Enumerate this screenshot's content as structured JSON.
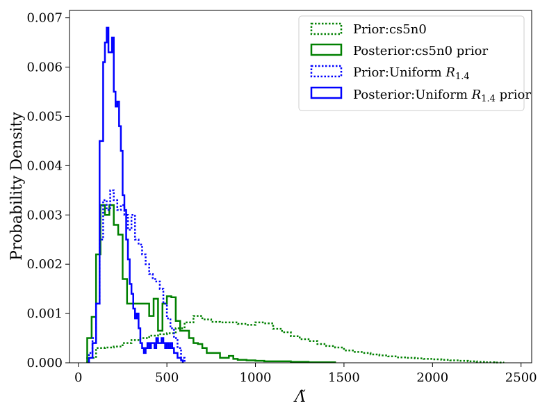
{
  "chart_data": {
    "type": "histogram",
    "xlabel": "Λ̃",
    "ylabel": "Probability Density",
    "xlim": [
      -50,
      2560
    ],
    "ylim": [
      0,
      0.00715
    ],
    "x_ticks": [
      0,
      500,
      1000,
      1500,
      2000,
      2500
    ],
    "x_tick_labels": [
      "0",
      "500",
      "1000",
      "1500",
      "2000",
      "2500"
    ],
    "y_ticks": [
      0,
      0.001,
      0.002,
      0.003,
      0.004,
      0.005,
      0.006,
      0.007
    ],
    "y_tick_labels": [
      "0.000",
      "0.001",
      "0.002",
      "0.003",
      "0.004",
      "0.005",
      "0.006",
      "0.007"
    ],
    "legend_position": "top-right",
    "legend": [
      {
        "label": "Prior:cs5n0",
        "color": "#008000",
        "style": "dotted"
      },
      {
        "label": "Posterior:cs5n0 prior",
        "color": "#008000",
        "style": "solid"
      },
      {
        "label_prefix": "Prior:Uniform ",
        "label_var": "R",
        "label_sub": "1.4",
        "label_suffix": "",
        "color": "#0000ff",
        "style": "dotted"
      },
      {
        "label_prefix": "Posterior:Uniform ",
        "label_var": "R",
        "label_sub": "1.4",
        "label_suffix": " prior",
        "color": "#0000ff",
        "style": "solid"
      }
    ],
    "series": [
      {
        "name": "Prior:cs5n0",
        "color": "#008000",
        "style": "dotted",
        "edges": [
          50,
          100,
          150,
          200,
          250,
          300,
          350,
          400,
          450,
          500,
          550,
          600,
          650,
          700,
          750,
          800,
          850,
          900,
          950,
          1000,
          1050,
          1100,
          1150,
          1200,
          1250,
          1300,
          1350,
          1400,
          1450,
          1500,
          1550,
          1600,
          1650,
          1700,
          1750,
          1800,
          1850,
          1900,
          1950,
          2000,
          2050,
          2100,
          2150,
          2200,
          2250,
          2300,
          2350,
          2400
        ],
        "values": [
          0.0001,
          0.0003,
          0.00031,
          0.00033,
          0.0004,
          0.00046,
          0.0005,
          0.00055,
          0.00058,
          0.0006,
          0.0007,
          0.00082,
          0.00095,
          0.00088,
          0.00083,
          0.00082,
          0.00082,
          0.00079,
          0.00077,
          0.00082,
          0.0008,
          0.00069,
          0.00062,
          0.00054,
          0.00048,
          0.00044,
          0.00038,
          0.00034,
          0.00031,
          0.00025,
          0.00022,
          0.0002,
          0.00017,
          0.00015,
          0.00013,
          0.00011,
          0.0001,
          9e-05,
          8e-05,
          7e-05,
          6e-05,
          5e-05,
          4e-05,
          3e-05,
          2e-05,
          1e-05,
          5e-06
        ]
      },
      {
        "name": "Posterior:cs5n0 prior",
        "color": "#008000",
        "style": "solid",
        "edges": [
          50,
          75,
          100,
          125,
          150,
          175,
          200,
          225,
          250,
          275,
          300,
          325,
          350,
          375,
          400,
          425,
          450,
          475,
          500,
          525,
          550,
          575,
          600,
          625,
          650,
          675,
          700,
          725,
          750,
          800,
          850,
          875,
          900,
          950,
          1000,
          1050,
          1100,
          1150,
          1200,
          1250,
          1300,
          1350,
          1400,
          1450
        ],
        "values": [
          0.0005,
          0.00093,
          0.0022,
          0.0032,
          0.003,
          0.0032,
          0.0028,
          0.0026,
          0.0017,
          0.0012,
          0.0012,
          0.0012,
          0.0012,
          0.0012,
          0.00095,
          0.0013,
          0.00065,
          0.0012,
          0.00135,
          0.00133,
          0.00085,
          0.00065,
          0.00065,
          0.0005,
          0.0004,
          0.00038,
          0.0003,
          0.0002,
          0.0002,
          0.0001,
          0.00014,
          8e-05,
          6e-05,
          5e-05,
          4e-05,
          3e-05,
          3e-05,
          3e-05,
          2e-05,
          2e-05,
          1e-05,
          1e-05,
          1e-05
        ]
      },
      {
        "name": "Prior:Uniform R1.4",
        "color": "#0000ff",
        "style": "dotted",
        "edges": [
          60,
          80,
          100,
          120,
          140,
          160,
          180,
          200,
          220,
          240,
          260,
          280,
          300,
          320,
          340,
          360,
          380,
          400,
          420,
          440,
          460,
          480,
          500,
          520,
          540,
          560,
          580,
          600
        ],
        "values": [
          0.0002,
          0.0005,
          0.0012,
          0.0025,
          0.0033,
          0.0031,
          0.0035,
          0.0033,
          0.0031,
          0.0032,
          0.003,
          0.0027,
          0.003,
          0.0025,
          0.0024,
          0.0022,
          0.002,
          0.0018,
          0.0017,
          0.00165,
          0.0015,
          0.0012,
          0.0009,
          0.0007,
          0.0005,
          0.0003,
          0.0001
        ]
      },
      {
        "name": "Posterior:Uniform R1.4 prior",
        "color": "#0000ff",
        "style": "solid",
        "edges": [
          60,
          80,
          100,
          120,
          140,
          150,
          160,
          170,
          180,
          190,
          200,
          210,
          220,
          230,
          240,
          250,
          260,
          270,
          280,
          290,
          300,
          310,
          320,
          330,
          340,
          350,
          360,
          370,
          380,
          390,
          400,
          410,
          420,
          430,
          440,
          450,
          460,
          470,
          480,
          490,
          500,
          510,
          520,
          530,
          540,
          550,
          560,
          570,
          580,
          590
        ],
        "values": [
          0.0001,
          0.0004,
          0.0012,
          0.0045,
          0.0061,
          0.0065,
          0.0068,
          0.0063,
          0.0063,
          0.0066,
          0.0055,
          0.0052,
          0.0053,
          0.0048,
          0.0043,
          0.0034,
          0.0031,
          0.0025,
          0.0021,
          0.0016,
          0.0014,
          0.0011,
          0.0009,
          0.001,
          0.0007,
          0.0004,
          0.0003,
          0.0002,
          0.0003,
          0.0004,
          0.0003,
          0.0004,
          0.0004,
          0.0003,
          0.0005,
          0.0004,
          0.0004,
          0.0005,
          0.0004,
          0.0003,
          0.0004,
          0.0003,
          0.0004,
          0.0003,
          0.0002,
          0.0002,
          0.0001,
          0.0001,
          5e-05
        ]
      }
    ]
  }
}
